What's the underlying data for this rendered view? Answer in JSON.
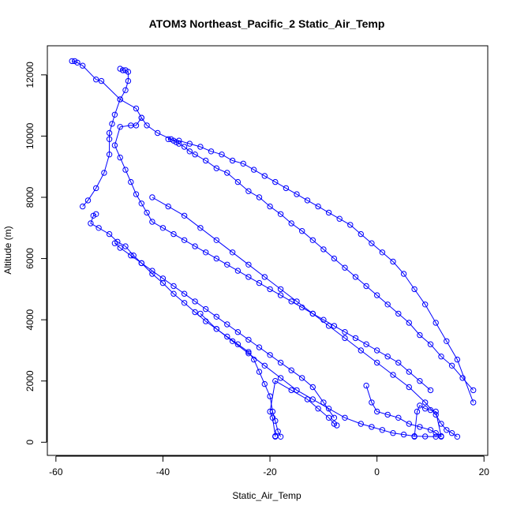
{
  "chart_data": {
    "type": "line",
    "title": "ATOM3 Northeast_Pacific_2 Static_Air_Temp",
    "xlabel": "Static_Air_Temp",
    "ylabel": "Altitude (m)",
    "xlim": [
      -61.6,
      20.7
    ],
    "ylim": [
      -430,
      12950
    ],
    "x_ticks": [
      -60,
      -40,
      -20,
      0,
      20
    ],
    "y_ticks": [
      0,
      2000,
      4000,
      6000,
      8000,
      10000,
      12000
    ],
    "line_color": "#0000ff",
    "marker": "open-circle",
    "grid": false,
    "series": [
      {
        "x": [
          -57,
          -56.5,
          -56,
          -55,
          -52.5,
          -51.5,
          -48,
          -45,
          -44,
          -43,
          -41,
          -38.5,
          -38,
          -37.5,
          -37,
          -36,
          -35,
          -34,
          -32,
          -30,
          -28,
          -26,
          -24,
          -22,
          -20,
          -18,
          -16,
          -14,
          -12,
          -10,
          -8,
          -6,
          -4,
          -2,
          0,
          2,
          4,
          6,
          8,
          10,
          12,
          14,
          16,
          18
        ],
        "y": [
          12450,
          12450,
          12400,
          12300,
          11850,
          11800,
          11200,
          10900,
          10600,
          10350,
          10100,
          9900,
          9850,
          9800,
          9750,
          9650,
          9500,
          9400,
          9200,
          8950,
          8800,
          8500,
          8200,
          8000,
          7700,
          7450,
          7150,
          6900,
          6600,
          6300,
          6000,
          5700,
          5400,
          5100,
          4800,
          4500,
          4200,
          3900,
          3500,
          3200,
          2800,
          2500,
          2100,
          1700
        ]
      },
      {
        "x": [
          18,
          15,
          13,
          11,
          9,
          7,
          5,
          3,
          1,
          -1,
          -3,
          -5,
          -7,
          -9,
          -11,
          -13,
          -15,
          -17,
          -19,
          -21,
          -23,
          -25,
          -27,
          -29,
          -31,
          -33,
          -35,
          -37,
          -39
        ],
        "y": [
          1300,
          2700,
          3300,
          3900,
          4500,
          5000,
          5500,
          5900,
          6200,
          6500,
          6800,
          7100,
          7300,
          7500,
          7700,
          7900,
          8100,
          8300,
          8500,
          8700,
          8900,
          9100,
          9200,
          9400,
          9500,
          9650,
          9750,
          9850,
          9900
        ]
      },
      {
        "x": [
          -48,
          -47.5,
          -47,
          -46.5,
          -46.5,
          -47,
          -48,
          -49,
          -49.5,
          -50,
          -50,
          -50,
          -51,
          -52.5,
          -54,
          -55
        ],
        "y": [
          12200,
          12150,
          12150,
          12100,
          11800,
          11500,
          11200,
          10700,
          10400,
          10100,
          9900,
          9400,
          8800,
          8300,
          7900,
          7700
        ]
      },
      {
        "x": [
          -44,
          -45,
          -46,
          -48,
          -49,
          -48,
          -47,
          -46,
          -45,
          -44,
          -43,
          -42,
          -40,
          -38,
          -36,
          -34,
          -32,
          -30,
          -28,
          -26,
          -24,
          -22,
          -20,
          -18,
          -16,
          -14,
          -12,
          -10,
          -8,
          -6,
          -4,
          -2,
          0,
          2,
          4,
          6,
          8,
          10
        ],
        "y": [
          10600,
          10350,
          10350,
          10300,
          9700,
          9300,
          8900,
          8500,
          8100,
          7800,
          7500,
          7200,
          7000,
          6800,
          6600,
          6400,
          6200,
          6000,
          5800,
          5600,
          5400,
          5200,
          5000,
          4800,
          4600,
          4400,
          4200,
          4000,
          3800,
          3600,
          3400,
          3200,
          3000,
          2800,
          2600,
          2300,
          2000,
          1700
        ]
      },
      {
        "x": [
          -52.5,
          -53,
          -53.5,
          -52,
          -50,
          -48.5,
          -47,
          -45.5,
          -44,
          -42,
          -40,
          -38,
          -36,
          -34,
          -32,
          -30,
          -28,
          -26,
          -24,
          -22,
          -20,
          -18,
          -16,
          -14,
          -12,
          -10,
          -8
        ],
        "y": [
          7450,
          7400,
          7150,
          7000,
          6800,
          6550,
          6400,
          6100,
          5850,
          5600,
          5350,
          5100,
          4850,
          4600,
          4350,
          4100,
          3850,
          3600,
          3350,
          3100,
          2850,
          2600,
          2350,
          2100,
          1800,
          1300,
          800
        ]
      },
      {
        "x": [
          -49,
          -48,
          -46,
          -44,
          -42,
          -40,
          -38,
          -36,
          -34,
          -32,
          -30,
          -28,
          -26,
          -24,
          -23,
          -22,
          -21,
          -20,
          -19.5,
          -19,
          -18.5,
          -18
        ],
        "y": [
          6500,
          6350,
          6100,
          5850,
          5500,
          5200,
          4850,
          4550,
          4250,
          3950,
          3700,
          3450,
          3200,
          2950,
          2700,
          2300,
          1900,
          1500,
          1000,
          700,
          350,
          180
        ]
      },
      {
        "x": [
          -42,
          -39,
          -36,
          -33,
          -30,
          -27,
          -24,
          -21,
          -18,
          -15,
          -12,
          -9,
          -6,
          -3,
          0,
          3,
          6,
          9,
          11,
          12,
          13,
          14,
          15
        ],
        "y": [
          8000,
          7700,
          7400,
          7000,
          6600,
          6200,
          5800,
          5400,
          5000,
          4600,
          4200,
          3800,
          3400,
          3000,
          2600,
          2200,
          1800,
          1300,
          900,
          600,
          400,
          300,
          180
        ]
      },
      {
        "x": [
          -33,
          -30,
          -27,
          -24,
          -21,
          -18,
          -15,
          -12,
          -9,
          -6,
          -3,
          -1,
          1,
          3,
          5,
          7,
          9,
          11,
          12
        ],
        "y": [
          4200,
          3700,
          3300,
          2900,
          2500,
          2100,
          1700,
          1400,
          1100,
          800,
          600,
          500,
          400,
          300,
          250,
          200,
          190,
          180,
          180
        ]
      },
      {
        "x": [
          -2,
          -1,
          0,
          2,
          4,
          6,
          8,
          10,
          11,
          12,
          11,
          10,
          9,
          8,
          7.5,
          7
        ],
        "y": [
          1850,
          1300,
          1000,
          900,
          800,
          600,
          500,
          400,
          300,
          200,
          1000,
          1050,
          1100,
          1200,
          1000,
          180
        ]
      },
      {
        "x": [
          -7.5,
          -8,
          -9,
          -11,
          -13,
          -16,
          -19,
          -20,
          -19.5,
          -19,
          -19
        ],
        "y": [
          550,
          600,
          800,
          1100,
          1400,
          1700,
          2000,
          1000,
          800,
          200,
          180
        ]
      }
    ]
  }
}
